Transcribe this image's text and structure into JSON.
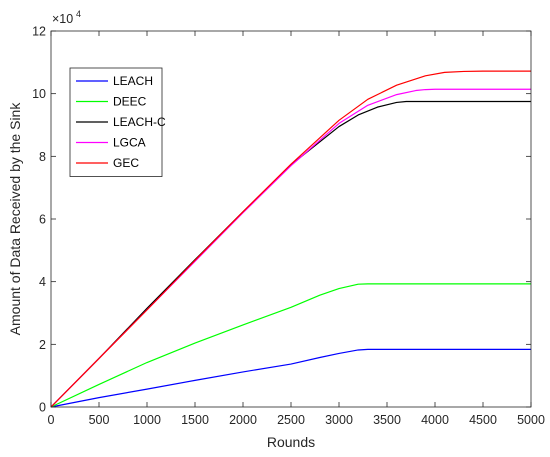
{
  "chart_data": {
    "type": "line",
    "title": "",
    "xlabel": "Rounds",
    "ylabel": "Amount of Data Received by the Sink",
    "xlim": [
      0,
      5000
    ],
    "ylim": [
      0,
      120000
    ],
    "xticks": [
      0,
      500,
      1000,
      1500,
      2000,
      2500,
      3000,
      3500,
      4000,
      4500,
      5000
    ],
    "xtick_labels": [
      "0",
      "500",
      "1000",
      "1500",
      "2000",
      "2500",
      "3000",
      "3500",
      "4000",
      "4500",
      "5000"
    ],
    "yticks": [
      0,
      20000,
      40000,
      60000,
      80000,
      100000,
      120000
    ],
    "ytick_labels": [
      "0",
      "2",
      "4",
      "6",
      "8",
      "10",
      "12"
    ],
    "y_exponent_base": "×10",
    "y_exponent_power": "4",
    "grid": false,
    "legend_position": "top-left",
    "series": [
      {
        "name": "LEACH",
        "color": "#0000ff",
        "x": [
          0,
          500,
          1000,
          1500,
          2000,
          2500,
          2800,
          3000,
          3200,
          3300,
          3500,
          4000,
          4500,
          5000
        ],
        "y": [
          0,
          3000,
          5700,
          8500,
          11200,
          13700,
          15800,
          17100,
          18200,
          18400,
          18400,
          18400,
          18400,
          18400
        ]
      },
      {
        "name": "DEEC",
        "color": "#00ff00",
        "x": [
          0,
          500,
          1000,
          1500,
          2000,
          2500,
          2800,
          3000,
          3200,
          3300,
          3500,
          4000,
          4500,
          5000
        ],
        "y": [
          0,
          7200,
          14200,
          20400,
          26200,
          31800,
          35700,
          37800,
          39200,
          39300,
          39300,
          39300,
          39300,
          39300
        ]
      },
      {
        "name": "LEACH-C",
        "color": "#000000",
        "x": [
          0,
          500,
          1000,
          1500,
          2000,
          2500,
          3000,
          3200,
          3400,
          3600,
          3700,
          3800,
          4000,
          4500,
          5000
        ],
        "y": [
          0,
          15500,
          31500,
          47000,
          62300,
          77300,
          89500,
          93200,
          95700,
          97200,
          97500,
          97500,
          97500,
          97500,
          97500
        ]
      },
      {
        "name": "LGCA",
        "color": "#ff00ff",
        "x": [
          0,
          500,
          1000,
          1500,
          2000,
          2500,
          3000,
          3300,
          3600,
          3800,
          3900,
          4000,
          4500,
          5000
        ],
        "y": [
          0,
          15500,
          31000,
          46500,
          62000,
          77000,
          90500,
          96300,
          99700,
          101000,
          101300,
          101400,
          101400,
          101400
        ]
      },
      {
        "name": "GEC",
        "color": "#ff0000",
        "x": [
          0,
          500,
          1000,
          1500,
          2000,
          2500,
          3000,
          3300,
          3600,
          3900,
          4100,
          4300,
          4500,
          5000
        ],
        "y": [
          0,
          15500,
          31000,
          46800,
          62300,
          77500,
          91500,
          98200,
          102700,
          105700,
          106800,
          107100,
          107200,
          107200
        ]
      }
    ]
  }
}
